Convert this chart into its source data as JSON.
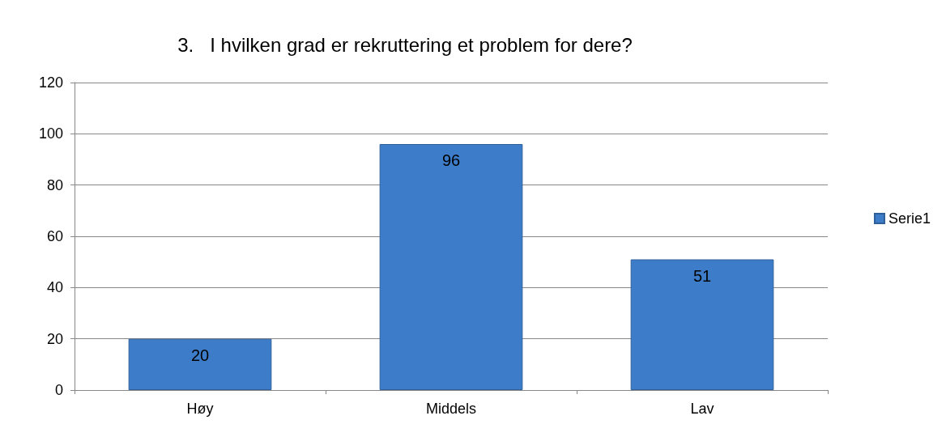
{
  "chart_data": {
    "type": "bar",
    "title": "3.   I hvilken grad er rekruttering et problem for dere?",
    "categories": [
      "Høy",
      "Middels",
      "Lav"
    ],
    "series": [
      {
        "name": "Serie1",
        "color": "#3c7cc8",
        "values": [
          20,
          96,
          51
        ]
      }
    ],
    "ylim": [
      0,
      120
    ],
    "yticks": [
      0,
      20,
      40,
      60,
      80,
      100,
      120
    ],
    "grid": "y",
    "legend": "right",
    "data_labels": true
  }
}
